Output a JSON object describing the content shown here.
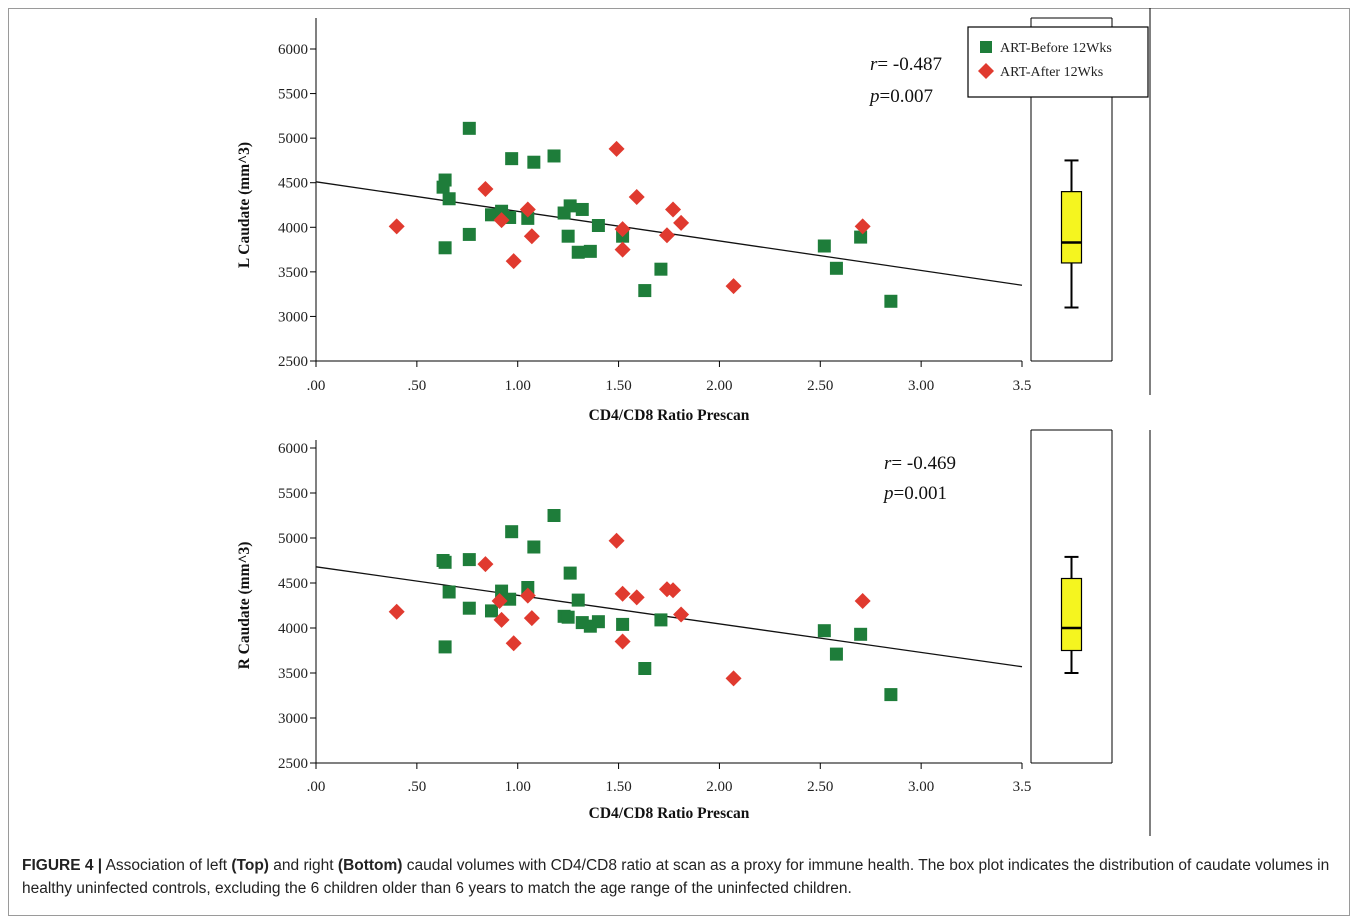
{
  "chart_data": [
    {
      "type": "scatter",
      "panel": "top",
      "xlabel": "CD4/CD8 Ratio Prescan",
      "ylabel": "L Caudate (mm^3)",
      "xlim": [
        0,
        3.5
      ],
      "ylim": [
        2500,
        6000
      ],
      "x_ticks": [
        ".00",
        ".50",
        "1.00",
        "1.50",
        "2.00",
        "2.50",
        "3.00",
        "3.5"
      ],
      "y_ticks": [
        "2500",
        "3000",
        "3500",
        "4000",
        "4500",
        "5000",
        "5500",
        "6000"
      ],
      "legend": {
        "placement": "top-right",
        "entries": [
          "ART-Before 12Wks",
          "ART-After 12Wks"
        ]
      },
      "stats": {
        "r_label": "r",
        "r_value": "= -0.487",
        "p_label": "p",
        "p_value": "=0.007"
      },
      "fit_line": {
        "x": [
          0,
          3.5
        ],
        "y": [
          4510,
          3350
        ]
      },
      "series": [
        {
          "name": "ART-Before 12Wks",
          "marker": "square",
          "color": "#1e7d3a",
          "points": [
            [
              0.63,
              4450
            ],
            [
              0.64,
              4530
            ],
            [
              0.66,
              4320
            ],
            [
              0.64,
              3770
            ],
            [
              0.76,
              3920
            ],
            [
              0.76,
              5110
            ],
            [
              0.87,
              4140
            ],
            [
              0.92,
              4180
            ],
            [
              0.96,
              4110
            ],
            [
              0.97,
              4770
            ],
            [
              1.05,
              4100
            ],
            [
              1.08,
              4730
            ],
            [
              1.18,
              4800
            ],
            [
              1.23,
              4160
            ],
            [
              1.26,
              4240
            ],
            [
              1.25,
              3900
            ],
            [
              1.3,
              3720
            ],
            [
              1.32,
              4200
            ],
            [
              1.36,
              3730
            ],
            [
              1.4,
              4020
            ],
            [
              1.52,
              3900
            ],
            [
              1.63,
              3290
            ],
            [
              1.71,
              3530
            ],
            [
              2.52,
              3790
            ],
            [
              2.58,
              3540
            ],
            [
              2.7,
              3890
            ],
            [
              2.85,
              3170
            ]
          ]
        },
        {
          "name": "ART-After 12Wks",
          "marker": "diamond",
          "color": "#e03a2f",
          "points": [
            [
              0.4,
              4010
            ],
            [
              0.84,
              4430
            ],
            [
              0.92,
              4080
            ],
            [
              0.98,
              3620
            ],
            [
              1.05,
              4200
            ],
            [
              1.07,
              3900
            ],
            [
              1.49,
              4880
            ],
            [
              1.52,
              3980
            ],
            [
              1.52,
              3750
            ],
            [
              1.59,
              4340
            ],
            [
              1.74,
              3910
            ],
            [
              1.77,
              4200
            ],
            [
              1.81,
              4050
            ],
            [
              2.07,
              3340
            ],
            [
              2.71,
              4010
            ]
          ]
        }
      ],
      "control_boxplot": {
        "color": "#f5f51f",
        "min": 3100,
        "q1": 3600,
        "median": 3830,
        "q3": 4400,
        "max": 4750
      }
    },
    {
      "type": "scatter",
      "panel": "bottom",
      "xlabel": "CD4/CD8 Ratio Prescan",
      "ylabel": "R Caudate (mm^3)",
      "xlim": [
        0,
        3.5
      ],
      "ylim": [
        2500,
        6000
      ],
      "x_ticks": [
        ".00",
        ".50",
        "1.00",
        "1.50",
        "2.00",
        "2.50",
        "3.00",
        "3.5"
      ],
      "y_ticks": [
        "2500",
        "3000",
        "3500",
        "4000",
        "4500",
        "5000",
        "5500",
        "6000"
      ],
      "stats": {
        "r_label": "r",
        "r_value": "= -0.469",
        "p_label": "p",
        "p_value": "=0.001"
      },
      "fit_line": {
        "x": [
          0,
          3.5
        ],
        "y": [
          4680,
          3570
        ]
      },
      "series": [
        {
          "name": "ART-Before 12Wks",
          "marker": "square",
          "color": "#1e7d3a",
          "points": [
            [
              0.63,
              4750
            ],
            [
              0.64,
              4730
            ],
            [
              0.66,
              4400
            ],
            [
              0.64,
              3790
            ],
            [
              0.76,
              4220
            ],
            [
              0.76,
              4760
            ],
            [
              0.87,
              4190
            ],
            [
              0.92,
              4410
            ],
            [
              0.96,
              4320
            ],
            [
              0.97,
              5070
            ],
            [
              1.05,
              4450
            ],
            [
              1.08,
              4900
            ],
            [
              1.18,
              5250
            ],
            [
              1.23,
              4130
            ],
            [
              1.26,
              4610
            ],
            [
              1.25,
              4120
            ],
            [
              1.3,
              4310
            ],
            [
              1.32,
              4060
            ],
            [
              1.36,
              4020
            ],
            [
              1.4,
              4070
            ],
            [
              1.52,
              4040
            ],
            [
              1.63,
              3550
            ],
            [
              1.71,
              4090
            ],
            [
              2.52,
              3970
            ],
            [
              2.58,
              3710
            ],
            [
              2.7,
              3930
            ],
            [
              2.85,
              3260
            ]
          ]
        },
        {
          "name": "ART-After 12Wks",
          "marker": "diamond",
          "color": "#e03a2f",
          "points": [
            [
              0.4,
              4180
            ],
            [
              0.84,
              4710
            ],
            [
              0.92,
              4090
            ],
            [
              0.91,
              4300
            ],
            [
              0.98,
              3830
            ],
            [
              1.05,
              4360
            ],
            [
              1.07,
              4110
            ],
            [
              1.49,
              4970
            ],
            [
              1.52,
              4380
            ],
            [
              1.52,
              3850
            ],
            [
              1.59,
              4340
            ],
            [
              1.74,
              4430
            ],
            [
              1.77,
              4420
            ],
            [
              1.81,
              4150
            ],
            [
              2.07,
              3440
            ],
            [
              2.71,
              4300
            ]
          ]
        }
      ],
      "control_boxplot": {
        "color": "#f5f51f",
        "min": 3500,
        "q1": 3750,
        "median": 4000,
        "q3": 4550,
        "max": 4790
      }
    }
  ],
  "caption": {
    "label": "FIGURE 4 |",
    "part1": " Association of left ",
    "top": "(Top)",
    "part2": " and right ",
    "bottom": "(Bottom)",
    "part3": " caudal volumes with CD4/CD8 ratio at scan as a proxy for immune health. The box plot indicates the distribution of caudate volumes in healthy uninfected controls, excluding the 6 children older than 6 years to match the age range of the uninfected children."
  }
}
